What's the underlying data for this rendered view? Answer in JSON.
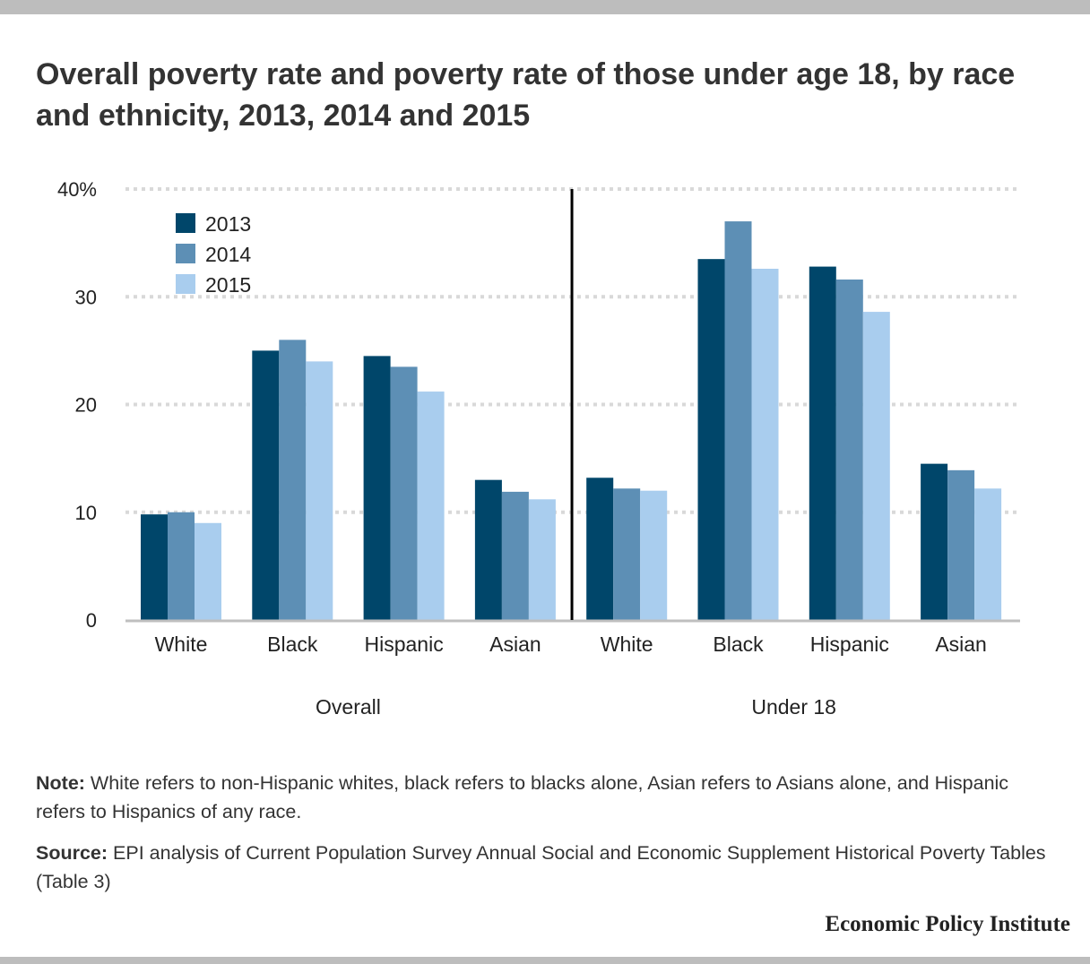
{
  "title": "Overall poverty rate and poverty rate of those under age 18, by race and ethnicity, 2013, 2014 and 2015",
  "note": {
    "lead": "Note:",
    "text": " White refers to non-Hispanic whites, black refers to blacks alone, Asian refers to Asians alone, and Hispanic refers to Hispanics of any race."
  },
  "source": {
    "lead": "Source:",
    "text": " EPI analysis of Current Population Survey Annual Social and Economic Supplement Historical Poverty Tables (Table 3)"
  },
  "branding": "Economic Policy Institute",
  "colors": {
    "s2013": "#00466a",
    "s2014": "#5d8fb5",
    "s2015": "#a9cdee",
    "grid": "#d9d9d9",
    "divider": "#000000",
    "baseline": "#bfbfbf"
  },
  "chart_data": {
    "type": "bar",
    "title": "Overall poverty rate and poverty rate of those under age 18, by race and ethnicity, 2013, 2014 and 2015",
    "xlabel": "",
    "ylabel": "",
    "ylim": [
      0,
      40
    ],
    "yticks": [
      {
        "value": 0,
        "label": "0"
      },
      {
        "value": 10,
        "label": "10"
      },
      {
        "value": 20,
        "label": "20"
      },
      {
        "value": 30,
        "label": "30"
      },
      {
        "value": 40,
        "label": "40%"
      }
    ],
    "grid": true,
    "legend_position": "top-left",
    "groups": [
      {
        "name": "Overall",
        "categories": [
          "White",
          "Black",
          "Hispanic",
          "Asian"
        ]
      },
      {
        "name": "Under 18",
        "categories": [
          "White",
          "Black",
          "Hispanic",
          "Asian"
        ]
      }
    ],
    "categories": [
      "White",
      "Black",
      "Hispanic",
      "Asian",
      "White",
      "Black",
      "Hispanic",
      "Asian"
    ],
    "series": [
      {
        "name": "2013",
        "color": "#00466a",
        "values": [
          9.8,
          25.0,
          24.5,
          13.0,
          13.2,
          33.5,
          32.8,
          14.5
        ]
      },
      {
        "name": "2014",
        "color": "#5d8fb5",
        "values": [
          10.0,
          26.0,
          23.5,
          11.9,
          12.2,
          37.0,
          31.6,
          13.9
        ]
      },
      {
        "name": "2015",
        "color": "#a9cdee",
        "values": [
          9.0,
          24.0,
          21.2,
          11.2,
          12.0,
          32.6,
          28.6,
          12.2
        ]
      }
    ]
  }
}
